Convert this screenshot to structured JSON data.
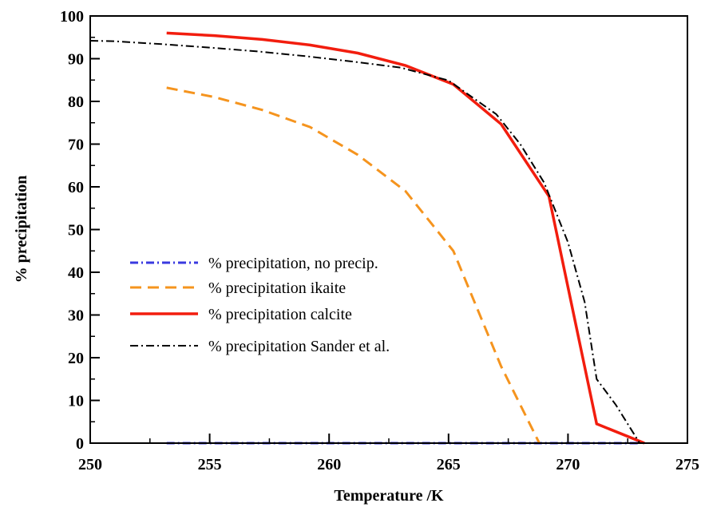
{
  "chart_data": {
    "type": "line",
    "title": "",
    "xlabel": "Temperature /K",
    "ylabel": "% precipitation",
    "xlim": [
      250,
      275
    ],
    "ylim": [
      0,
      100
    ],
    "xticks": [
      250,
      255,
      260,
      265,
      270,
      275
    ],
    "yticks": [
      0,
      10,
      20,
      30,
      40,
      50,
      60,
      70,
      80,
      90,
      100
    ],
    "grid": false,
    "legend_position": "center-left",
    "series": [
      {
        "name": "% precipitation, no precip.",
        "color": "#3a3adf",
        "style": "dash-dot",
        "x": [
          253.2,
          255,
          257,
          259,
          261,
          263,
          265,
          267,
          269,
          271,
          273
        ],
        "y": [
          0,
          0,
          0,
          0,
          0,
          0,
          0,
          0,
          0,
          0,
          0
        ]
      },
      {
        "name": "% precipitation ikaite",
        "color": "#f5941e",
        "style": "dashed",
        "x": [
          253.2,
          255.2,
          257.2,
          259.2,
          261.2,
          263.2,
          265.2,
          267.2,
          268.8
        ],
        "y": [
          83.2,
          81,
          78,
          74,
          67.5,
          59,
          45,
          18,
          0
        ]
      },
      {
        "name": "% precipitation calcite",
        "color": "#f21d0e",
        "style": "solid",
        "x": [
          253.2,
          255.2,
          257.2,
          259.2,
          261.2,
          263.2,
          265.2,
          267.2,
          269.2,
          271.2,
          273.2
        ],
        "y": [
          96,
          95.4,
          94.5,
          93.2,
          91.3,
          88.4,
          84,
          74.7,
          57.8,
          4.5,
          0
        ]
      },
      {
        "name": "% precipitation Sander et al.",
        "color": "#000000",
        "style": "dash-dot",
        "x": [
          250,
          251,
          253,
          255,
          257,
          259,
          261,
          263,
          265,
          267,
          268,
          269,
          270,
          270.7,
          271.2,
          272,
          273
        ],
        "y": [
          94.2,
          94.1,
          93.4,
          92.6,
          91.7,
          90.6,
          89.3,
          87.9,
          84.9,
          77,
          70,
          61,
          47,
          33,
          15,
          9,
          0
        ]
      }
    ]
  }
}
